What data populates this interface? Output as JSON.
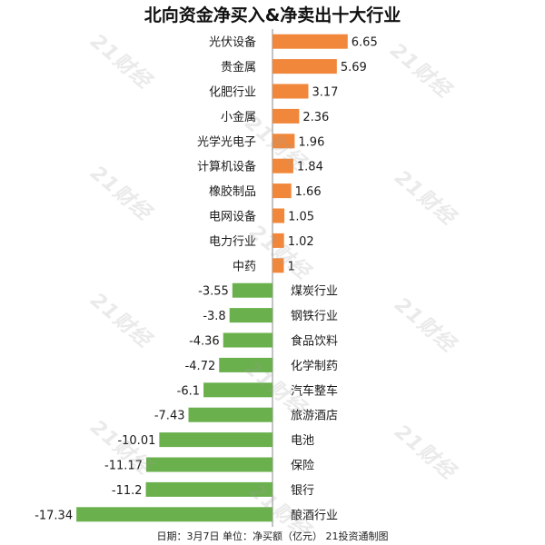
{
  "title": "北向资金净买入&净卖出十大行业",
  "footer": "日期：3月7日  单位：净买额（亿元）  21投资通制图",
  "watermark": "21财经",
  "colors": {
    "positive": "#f0873a",
    "negative": "#6ab04c",
    "axis": "#888888"
  },
  "chart_data": {
    "type": "bar",
    "orientation": "horizontal",
    "title": "北向资金净买入&净卖出十大行业",
    "unit": "净买额（亿元）",
    "categories": [
      "光伏设备",
      "贵金属",
      "化肥行业",
      "小金属",
      "光学光电子",
      "计算机设备",
      "橡胶制品",
      "电网设备",
      "电力行业",
      "中药",
      "煤炭行业",
      "钢铁行业",
      "食品饮料",
      "化学制药",
      "汽车整车",
      "旅游酒店",
      "电池",
      "保险",
      "银行",
      "酿酒行业"
    ],
    "values": [
      6.65,
      5.69,
      3.17,
      2.36,
      1.96,
      1.84,
      1.66,
      1.05,
      1.02,
      1,
      -3.55,
      -3.8,
      -4.36,
      -4.72,
      -6.1,
      -7.43,
      -10.01,
      -11.17,
      -11.2,
      -17.34
    ],
    "value_labels": [
      "6.65",
      "5.69",
      "3.17",
      "2.36",
      "1.96",
      "1.84",
      "1.66",
      "1.05",
      "1.02",
      "1",
      "-3.55",
      "-3.8",
      "-4.36",
      "-4.72",
      "-6.1",
      "-7.43",
      "-10.01",
      "-11.17",
      "-11.2",
      "-17.34"
    ],
    "xlim": [
      -17.34,
      6.65
    ],
    "grid": false,
    "legend": "none"
  }
}
